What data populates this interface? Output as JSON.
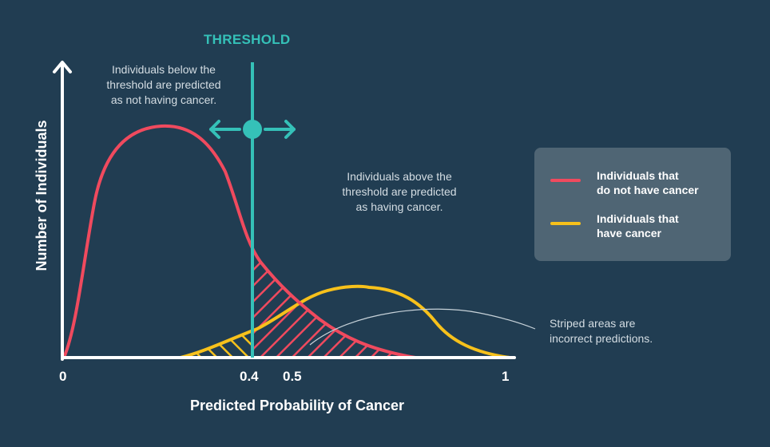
{
  "threshold": {
    "title": "THRESHOLD",
    "value": 0.4,
    "color": "#35c1b8"
  },
  "annotations": {
    "below": "Individuals below the\nthreshold are predicted\nas not having cancer.",
    "above": "Individuals above the\nthreshold are predicted\nas having cancer.",
    "striped": "Striped areas are\nincorrect predictions."
  },
  "axes": {
    "ylabel": "Number of Individuals",
    "xlabel": "Predicted Probability of Cancer",
    "ticks": [
      "0",
      "0.4",
      "0.5",
      "1"
    ]
  },
  "legend": {
    "items": [
      {
        "label": "Individuals that\ndo not have cancer",
        "color": "#f04a5e"
      },
      {
        "label": "Individuals that\nhave cancer",
        "color": "#f7c11b"
      }
    ]
  },
  "colors": {
    "background": "#213d52",
    "no_cancer": "#f04a5e",
    "cancer": "#f7c11b",
    "axis": "#ffffff",
    "legend_bg": "#4f6574"
  }
}
